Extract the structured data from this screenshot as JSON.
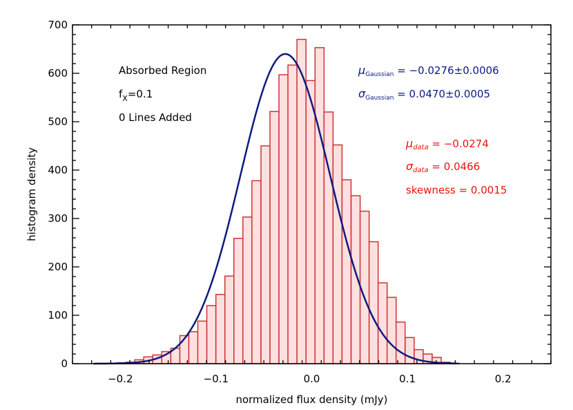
{
  "chart_data": {
    "type": "bar",
    "xlabel": "normalized flux density (mJy)",
    "ylabel": "histogram density",
    "xlim": [
      -0.25,
      0.25
    ],
    "ylim": [
      0,
      700
    ],
    "x_ticks": [
      -0.2,
      -0.1,
      0.0,
      0.1,
      0.2
    ],
    "x_tick_labels": [
      "−0.2",
      "−0.1",
      "0.0",
      "0.1",
      "0.2"
    ],
    "y_ticks": [
      0,
      100,
      200,
      300,
      400,
      500,
      600,
      700
    ],
    "y_tick_labels": [
      "0",
      "100",
      "200",
      "300",
      "400",
      "500",
      "600",
      "700"
    ],
    "bin_width": 0.00942,
    "bin_centers": [
      -0.2273,
      -0.2179,
      -0.2085,
      -0.1991,
      -0.1896,
      -0.1802,
      -0.1708,
      -0.1614,
      -0.152,
      -0.1425,
      -0.1331,
      -0.1237,
      -0.1143,
      -0.1049,
      -0.0954,
      -0.086,
      -0.0766,
      -0.0672,
      -0.0578,
      -0.0483,
      -0.0389,
      -0.0295,
      -0.0201,
      -0.0107,
      -0.0012,
      0.0082,
      0.0176,
      0.027,
      0.0364,
      0.0459,
      0.0553,
      0.0647,
      0.0741,
      0.0835,
      0.0929,
      0.1024,
      0.1118,
      0.1212,
      0.1306,
      0.14,
      0.1495
    ],
    "bin_values": [
      0,
      0,
      0,
      2,
      3,
      8,
      14,
      18,
      25,
      32,
      58,
      66,
      88,
      120,
      143,
      181,
      259,
      303,
      378,
      450,
      521,
      597,
      617,
      670,
      585,
      653,
      520,
      452,
      380,
      347,
      315,
      252,
      167,
      137,
      86,
      54,
      29,
      20,
      13,
      3,
      1
    ],
    "series": [
      {
        "type": "line",
        "mu": -0.0276,
        "sigma": 0.047,
        "peak": 640,
        "x_range": [
          -0.228,
          0.152
        ],
        "color": "#0b1a80"
      }
    ],
    "bar_edge_color": "#cc3333",
    "bar_fill_color": "#ffe0e0",
    "grid": false
  },
  "annotations": {
    "region": "Absorbed Region",
    "fx_sym": "f",
    "fx_sub": "X",
    "fx_val": "=0.1",
    "lines_added": "0 Lines Added",
    "mu_gauss_sym": "μ",
    "mu_gauss_sub": "Gaussian",
    "mu_gauss_val": " = −0.0276±0.0006",
    "sigma_gauss_sym": "σ",
    "sigma_gauss_sub": "Gaussian",
    "sigma_gauss_val": " = 0.0470±0.0005",
    "mu_data_sym": "μ",
    "mu_data_sub": "data",
    "mu_data_val": " = −0.0274",
    "sigma_data_sym": "σ",
    "sigma_data_sub": "data",
    "sigma_data_val": " = 0.0466",
    "skewness": "skewness = 0.0015",
    "gauss_color": "#0b1a80",
    "data_color": "#ee1111"
  }
}
